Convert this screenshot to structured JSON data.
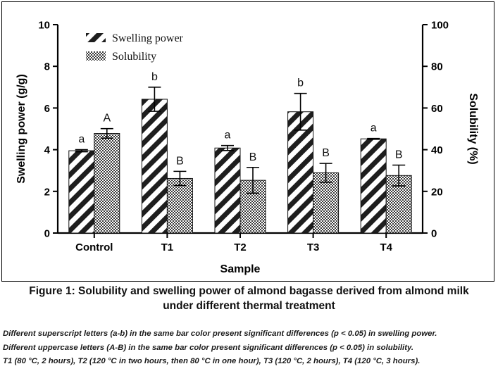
{
  "chart_data": {
    "type": "bar",
    "categories": [
      "Control",
      "T1",
      "T2",
      "T3",
      "T4"
    ],
    "series": [
      {
        "name": "Swelling power",
        "axis": "left",
        "pattern": "diagonal-stripes",
        "values": [
          3.95,
          6.42,
          4.08,
          5.82,
          4.52
        ],
        "errors": [
          0.05,
          0.58,
          0.12,
          0.88,
          0.02
        ],
        "letters": [
          "a",
          "b",
          "a",
          "b",
          "a"
        ]
      },
      {
        "name": "Solubility",
        "axis": "right",
        "pattern": "checkered",
        "values": [
          47.8,
          26.2,
          25.3,
          28.9,
          27.6
        ],
        "errors": [
          2.3,
          3.4,
          6.2,
          4.5,
          5.0
        ],
        "letters": [
          "A",
          "B",
          "B",
          "B",
          "B"
        ]
      }
    ],
    "xlabel": "Sample",
    "ylabel": "Swelling power (g/g)",
    "y2label": "Solubility (%)",
    "ylim": [
      0,
      10
    ],
    "y2lim": [
      0,
      100
    ],
    "yticks": [
      "0",
      "2",
      "4",
      "6",
      "8",
      "10"
    ],
    "y2ticks": [
      "0",
      "20",
      "40",
      "60",
      "80",
      "100"
    ],
    "legend_position": "top-left",
    "grid": false
  },
  "caption": {
    "line1": "Figure 1: Solubility and swelling power of almond bagasse derived from almond milk",
    "line2": "under different thermal treatment"
  },
  "notes": [
    "Different superscript letters (a-b) in the same bar color present significant differences (p < 0.05) in swelling power.",
    "Different uppercase letters (A-B) in the same bar color present significant differences (p < 0.05) in solubility.",
    "T1 (80 °C, 2 hours), T2 (120 °C in two hours, then 80 °C in one hour), T3 (120 °C, 2 hours), T4 (120 °C, 3 hours)."
  ]
}
